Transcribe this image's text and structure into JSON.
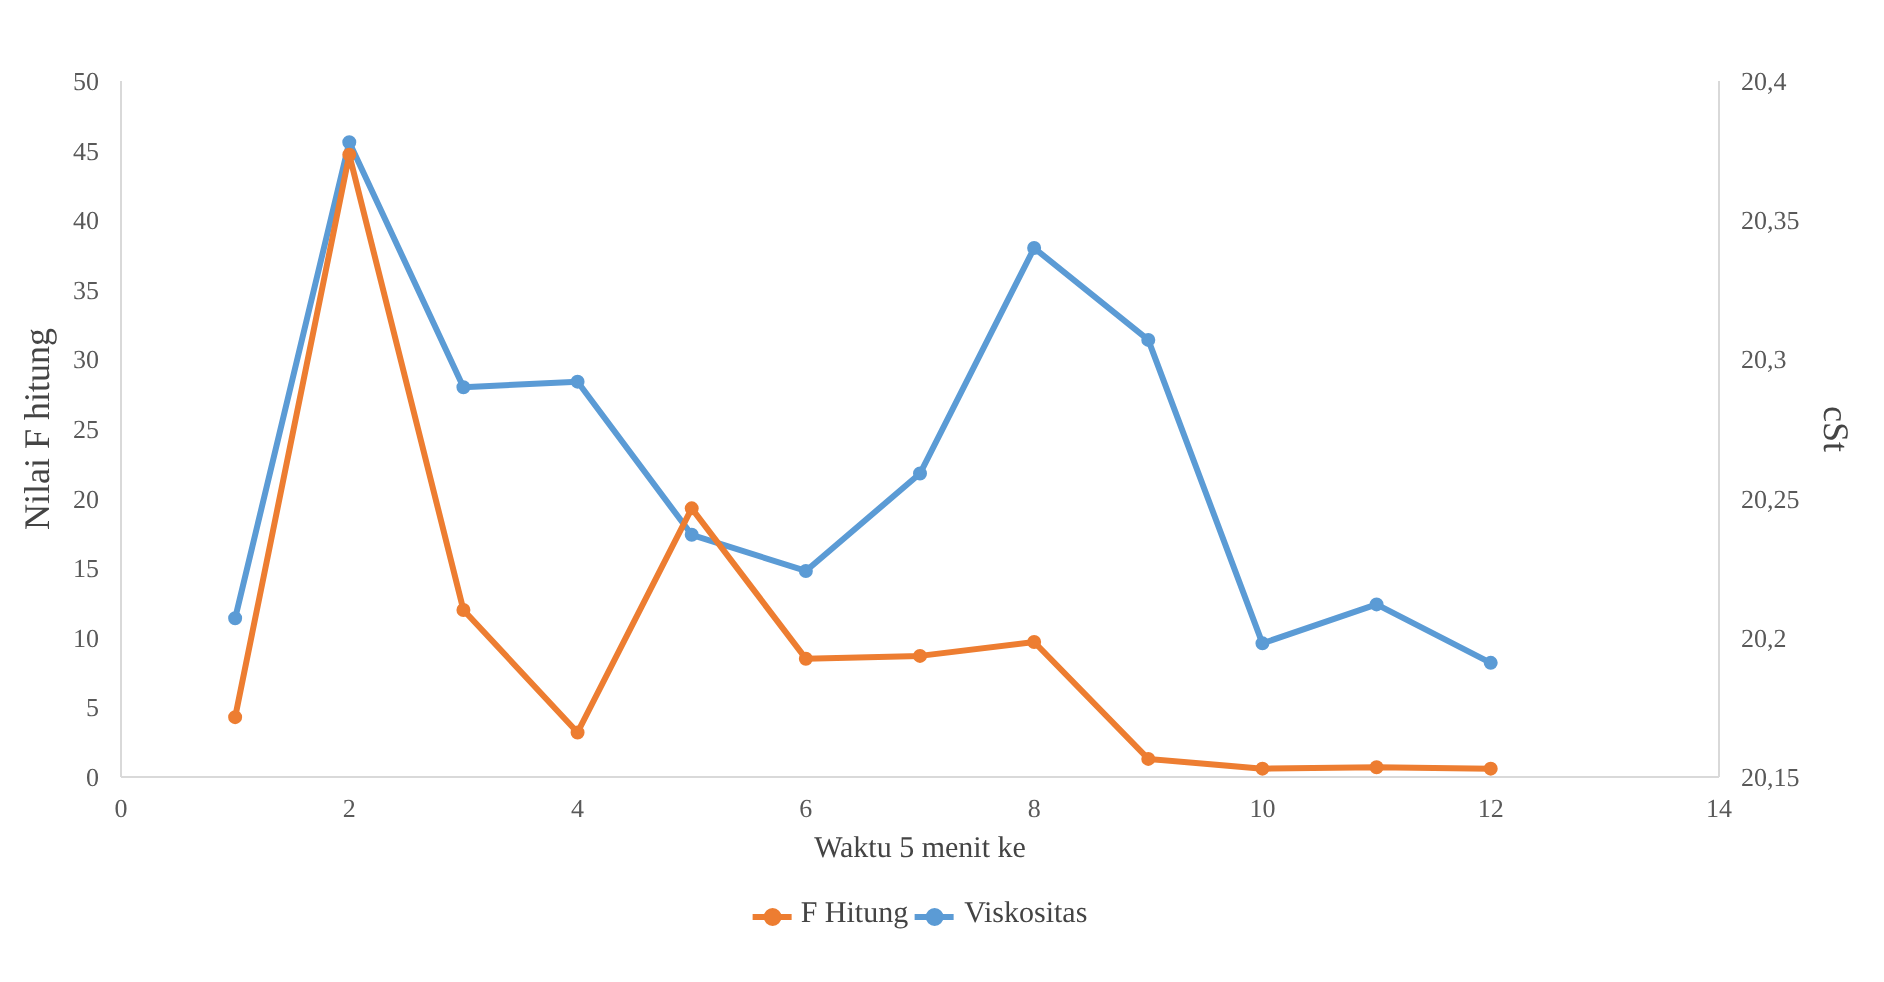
{
  "chart_data": {
    "type": "line",
    "xlabel": "Waktu 5 menit ke",
    "ylabel": "Nilai F hitung",
    "y2label": "cSt",
    "x": [
      1,
      2,
      3,
      4,
      5,
      6,
      7,
      8,
      9,
      10,
      11,
      12
    ],
    "series": [
      {
        "name": "F Hitung",
        "color": "#ed7d31",
        "values": [
          4.3,
          44.7,
          12,
          3.2,
          19.3,
          8.5,
          8.7,
          9.7,
          1.3,
          0.6,
          0.7,
          0.6
        ]
      },
      {
        "name": "Viskositas",
        "color": "#5b9bd5",
        "axis": "y2",
        "values": [
          20.207,
          20.378,
          20.29,
          20.292,
          20.237,
          20.224,
          20.259,
          20.34,
          20.307,
          20.198,
          20.212,
          20.191
        ]
      }
    ],
    "xlim": [
      0,
      14
    ],
    "xticks": [
      0,
      2,
      4,
      6,
      8,
      10,
      12,
      14
    ],
    "ylim": [
      0,
      50
    ],
    "yticks": [
      0,
      5,
      10,
      15,
      20,
      25,
      30,
      35,
      40,
      45,
      50
    ],
    "y2lim": [
      20.15,
      20.4
    ],
    "y2ticks": [
      {
        "value": 20.15,
        "label": "20,15"
      },
      {
        "value": 20.2,
        "label": "20,2"
      },
      {
        "value": 20.25,
        "label": "20,25"
      },
      {
        "value": 20.3,
        "label": "20,3"
      },
      {
        "value": 20.35,
        "label": "20,35"
      },
      {
        "value": 20.4,
        "label": "20,4"
      }
    ],
    "grid": false,
    "legend": "bottom",
    "marker": "circle",
    "line_style": "solid"
  }
}
